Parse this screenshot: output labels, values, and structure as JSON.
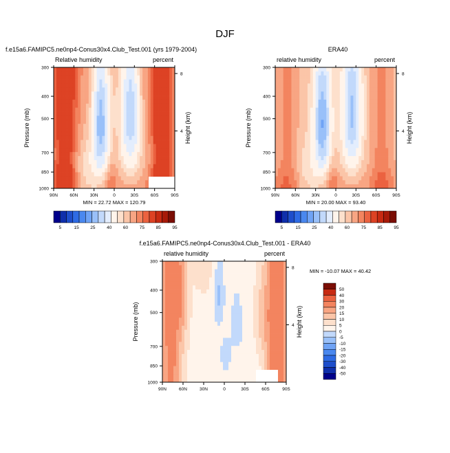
{
  "page": {
    "title": "DJF"
  },
  "chart_data": [
    {
      "id": "model",
      "type": "heatmap",
      "title": "f.e15a6.FAMIPC5.ne0np4-Conus30x4.Club_Test.001 (yrs 1979-2004)",
      "left_label": "Relative humidity",
      "right_label": "percent",
      "ylabel": "Pressure (mb)",
      "y2label": "Height (km)",
      "x_ticks": [
        "90N",
        "60N",
        "30N",
        "0",
        "30S",
        "60S",
        "90S"
      ],
      "x_range": [
        90,
        -90
      ],
      "y_ticks": [
        300,
        400,
        500,
        700,
        850,
        1000
      ],
      "y_range": [
        300,
        1000
      ],
      "y_scale": "log",
      "y2_ticks": [
        8,
        4
      ],
      "stats": "MIN =  22.72   MAX = 120.79",
      "min": 22.72,
      "max": 120.79,
      "levels": [
        5,
        10,
        15,
        20,
        25,
        30,
        40,
        50,
        60,
        70,
        75,
        80,
        85,
        90,
        95
      ],
      "colors": [
        "#00008b",
        "#0f2fab",
        "#1e4ecb",
        "#2e6be4",
        "#4a88ef",
        "#6fa3f5",
        "#99c0f9",
        "#c2d9fb",
        "#e3edfd",
        "#fff4eb",
        "#fde0cc",
        "#fbc5a8",
        "#f8a583",
        "#f3845f",
        "#eb6240",
        "#dd4224",
        "#c72a12",
        "#a71a09",
        "#7b0e05"
      ],
      "bar_labels": [
        "5",
        "15",
        "25",
        "40",
        "60",
        "75",
        "85",
        "95"
      ]
    },
    {
      "id": "obs",
      "type": "heatmap",
      "title": "ERA40",
      "left_label": "relative humidity",
      "right_label": "percent",
      "ylabel": "Pressure (mb)",
      "y2label": "Height (km)",
      "x_ticks": [
        "90N",
        "60N",
        "30N",
        "0",
        "30S",
        "60S",
        "90S"
      ],
      "x_range": [
        90,
        -90
      ],
      "y_ticks": [
        300,
        400,
        500,
        700,
        850,
        1000
      ],
      "y_range": [
        300,
        1000
      ],
      "y_scale": "log",
      "y2_ticks": [
        8,
        4
      ],
      "stats": "MIN =  20.00   MAX =  93.40",
      "min": 20.0,
      "max": 93.4,
      "bar_labels": [
        "5",
        "15",
        "25",
        "40",
        "60",
        "75",
        "85",
        "95"
      ]
    },
    {
      "id": "diff",
      "type": "heatmap",
      "title": "f.e15a6.FAMIPC5.ne0np4-Conus30x4.Club_Test.001 - ERA40",
      "left_label": "relative humidity",
      "right_label": "percent",
      "ylabel": "Pressure (mb)",
      "y2label": "Height (km)",
      "x_ticks": [
        "90N",
        "60N",
        "30N",
        "0",
        "30S",
        "60S",
        "90S"
      ],
      "x_range": [
        90,
        -90
      ],
      "y_ticks": [
        300,
        400,
        500,
        700,
        850,
        1000
      ],
      "y_range": [
        300,
        1000
      ],
      "y_scale": "log",
      "y2_ticks": [
        8,
        4
      ],
      "stats": "MIN = -10.07   MAX =  40.42",
      "min": -10.07,
      "max": 40.42,
      "levels": [
        -50,
        -40,
        -30,
        -20,
        -15,
        -10,
        -5,
        0,
        5,
        10,
        15,
        20,
        30,
        40,
        50
      ],
      "colors": [
        "#00008b",
        "#0f2fab",
        "#1e4ecb",
        "#2e6be4",
        "#4a88ef",
        "#6fa3f5",
        "#99c0f9",
        "#c2d9fb",
        "#fff4eb",
        "#fde0cc",
        "#fbc5a8",
        "#f8a583",
        "#f3845f",
        "#eb6240",
        "#c72a12",
        "#7b0e05"
      ],
      "bar_labels": [
        "50",
        "40",
        "30",
        "20",
        "15",
        "10",
        "5",
        "0",
        "-5",
        "-10",
        "-15",
        "-20",
        "-30",
        "-40",
        "-50"
      ]
    }
  ]
}
